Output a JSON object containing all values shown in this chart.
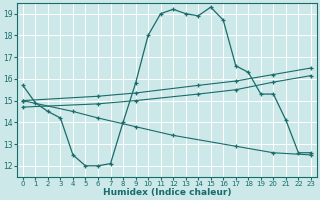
{
  "xlabel": "Humidex (Indice chaleur)",
  "ylabel": "",
  "xlim": [
    -0.5,
    23.5
  ],
  "ylim": [
    11.5,
    19.5
  ],
  "yticks": [
    12,
    13,
    14,
    15,
    16,
    17,
    18,
    19
  ],
  "xticks": [
    0,
    1,
    2,
    3,
    4,
    5,
    6,
    7,
    8,
    9,
    10,
    11,
    12,
    13,
    14,
    15,
    16,
    17,
    18,
    19,
    20,
    21,
    22,
    23
  ],
  "bg_color": "#cce8e8",
  "line_color": "#1a6b6b",
  "grid_color": "#ffffff",
  "line1_x": [
    0,
    1,
    2,
    3,
    4,
    5,
    6,
    7,
    8,
    9,
    10,
    11,
    12,
    13,
    14,
    15,
    16,
    17,
    18,
    19,
    20,
    21,
    22,
    23
  ],
  "line1_y": [
    15.7,
    14.9,
    14.5,
    14.2,
    12.5,
    12.0,
    12.0,
    12.1,
    14.0,
    15.8,
    18.0,
    19.0,
    19.2,
    19.0,
    18.9,
    19.3,
    18.7,
    16.6,
    16.3,
    15.3,
    15.3,
    14.1,
    12.6,
    12.6
  ],
  "line2_x": [
    0,
    6,
    9,
    14,
    17,
    20,
    23
  ],
  "line2_y": [
    15.0,
    15.2,
    15.35,
    15.7,
    15.9,
    16.2,
    16.5
  ],
  "line3_x": [
    0,
    6,
    9,
    14,
    17,
    20,
    23
  ],
  "line3_y": [
    14.7,
    14.85,
    15.0,
    15.3,
    15.5,
    15.85,
    16.15
  ],
  "line4_x": [
    0,
    4,
    6,
    9,
    12,
    17,
    20,
    23
  ],
  "line4_y": [
    15.0,
    14.5,
    14.2,
    13.8,
    13.4,
    12.9,
    12.6,
    12.5
  ]
}
